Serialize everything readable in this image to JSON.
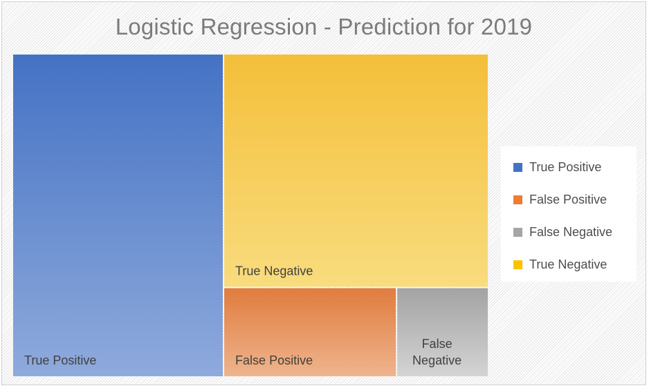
{
  "chart_data": {
    "type": "treemap",
    "title": "Logistic Regression - Prediction for 2019",
    "legend_position": "right",
    "items": [
      {
        "name": "True Positive",
        "label_lines": [
          "True Positive"
        ],
        "value": 141,
        "color": "#4472c4",
        "color_light": "#8faadc"
      },
      {
        "name": "True Negative",
        "label_lines": [
          "True Negative"
        ],
        "value": 128,
        "color": "#f4bf3a",
        "color_light": "#f8dc7e"
      },
      {
        "name": "False Positive",
        "label_lines": [
          "False Positive"
        ],
        "value": 32,
        "color": "#e07c3e",
        "color_light": "#efb48d"
      },
      {
        "name": "False Negative",
        "label_lines": [
          "False",
          "Negative"
        ],
        "value": 17,
        "color": "#a3a3a3",
        "color_light": "#d4d4d4"
      }
    ]
  },
  "legend": {
    "items": [
      {
        "label": "True Positive",
        "color": "#4472c4"
      },
      {
        "label": "False Positive",
        "color": "#ed7d31"
      },
      {
        "label": "False Negative",
        "color": "#a5a5a5"
      },
      {
        "label": "True Negative",
        "color": "#ffc000"
      }
    ]
  }
}
